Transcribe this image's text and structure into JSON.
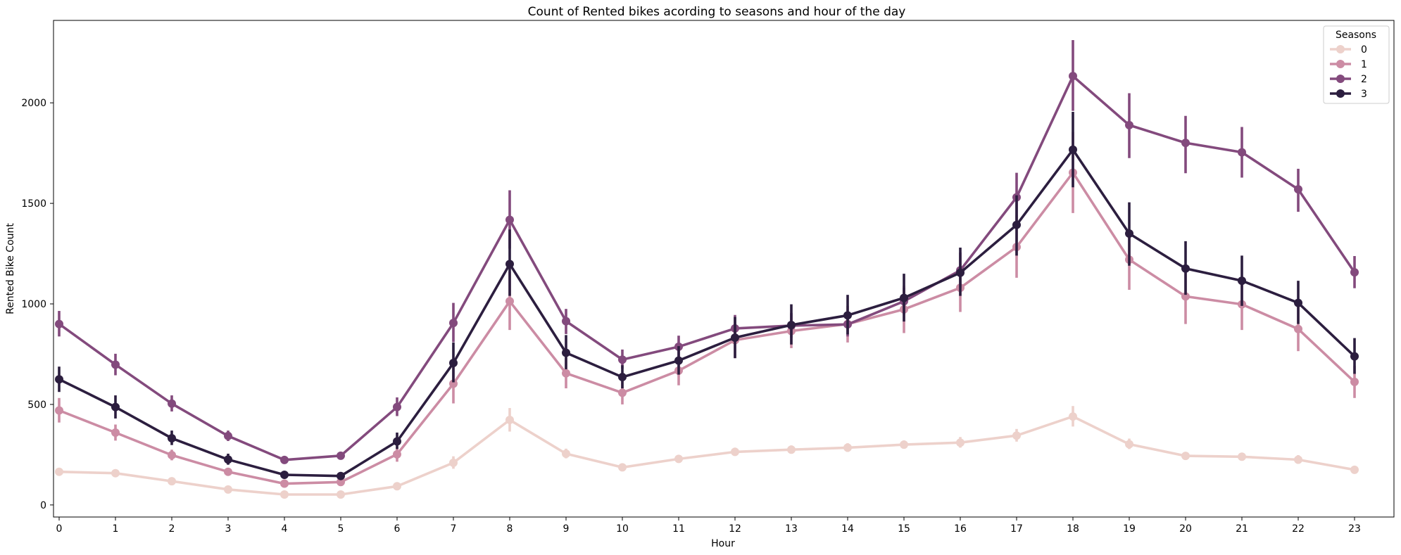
{
  "chart_data": {
    "type": "line",
    "title": "Count of Rented bikes acording to seasons and hour of the day",
    "xlabel": "Hour",
    "ylabel": "Rented Bike Count",
    "categories": [
      "0",
      "1",
      "2",
      "3",
      "4",
      "5",
      "6",
      "7",
      "8",
      "9",
      "10",
      "11",
      "12",
      "13",
      "14",
      "15",
      "16",
      "17",
      "18",
      "19",
      "20",
      "21",
      "22",
      "23"
    ],
    "ylim": [
      -60,
      2410
    ],
    "yticks": [
      0,
      500,
      1000,
      1500,
      2000
    ],
    "grid": false,
    "legend": {
      "title": "Seasons",
      "position": "top-right"
    },
    "series": [
      {
        "name": "0",
        "color": "#edd1cb",
        "values": [
          165,
          158,
          118,
          77,
          52,
          52,
          93,
          210,
          423,
          255,
          187,
          229,
          264,
          275,
          285,
          300,
          310,
          345,
          440,
          302,
          244,
          240,
          225,
          175
        ],
        "ci_low": [
          155,
          148,
          110,
          70,
          46,
          46,
          85,
          180,
          365,
          232,
          172,
          212,
          244,
          255,
          264,
          280,
          285,
          315,
          390,
          278,
          228,
          222,
          205,
          162
        ],
        "ci_high": [
          176,
          170,
          128,
          85,
          58,
          58,
          102,
          242,
          482,
          280,
          203,
          248,
          285,
          296,
          307,
          321,
          338,
          378,
          492,
          330,
          262,
          260,
          248,
          190
        ]
      },
      {
        "name": "1",
        "color": "#cc8ca4",
        "values": [
          470,
          360,
          248,
          165,
          106,
          114,
          252,
          603,
          1013,
          655,
          558,
          668,
          820,
          865,
          900,
          973,
          1080,
          1283,
          1653,
          1220,
          1037,
          998,
          875,
          612
        ],
        "ci_low": [
          410,
          320,
          222,
          150,
          95,
          100,
          215,
          505,
          870,
          580,
          500,
          595,
          730,
          780,
          808,
          855,
          960,
          1130,
          1452,
          1070,
          900,
          870,
          765,
          532
        ],
        "ci_high": [
          532,
          400,
          275,
          182,
          118,
          128,
          290,
          705,
          1160,
          730,
          615,
          740,
          910,
          950,
          990,
          1090,
          1200,
          1440,
          1855,
          1370,
          1175,
          1125,
          985,
          692
        ]
      },
      {
        "name": "2",
        "color": "#834a7d",
        "values": [
          900,
          698,
          504,
          343,
          224,
          245,
          487,
          905,
          1418,
          914,
          723,
          787,
          878,
          892,
          898,
          1013,
          1167,
          1530,
          2133,
          1889,
          1801,
          1754,
          1570,
          1157
        ],
        "ci_low": [
          838,
          645,
          465,
          318,
          210,
          230,
          442,
          810,
          1275,
          850,
          678,
          737,
          818,
          832,
          838,
          948,
          1080,
          1410,
          1960,
          1725,
          1650,
          1628,
          1458,
          1078
        ],
        "ci_high": [
          965,
          752,
          545,
          370,
          240,
          262,
          535,
          1005,
          1565,
          975,
          773,
          842,
          945,
          955,
          960,
          1080,
          1255,
          1652,
          2312,
          2048,
          1935,
          1880,
          1672,
          1238
        ]
      },
      {
        "name": "3",
        "color": "#2c1e3f",
        "values": [
          625,
          487,
          332,
          226,
          150,
          144,
          316,
          706,
          1198,
          757,
          636,
          718,
          832,
          895,
          943,
          1030,
          1155,
          1393,
          1767,
          1350,
          1176,
          1115,
          1005,
          739
        ],
        "ci_low": [
          562,
          430,
          298,
          200,
          137,
          132,
          278,
          610,
          1040,
          675,
          580,
          648,
          730,
          798,
          848,
          912,
          1040,
          1240,
          1580,
          1190,
          1045,
          990,
          900,
          652
        ],
        "ci_high": [
          688,
          545,
          370,
          255,
          165,
          158,
          360,
          808,
          1370,
          845,
          695,
          790,
          935,
          998,
          1045,
          1150,
          1280,
          1540,
          1955,
          1505,
          1312,
          1240,
          1115,
          830
        ]
      }
    ]
  }
}
